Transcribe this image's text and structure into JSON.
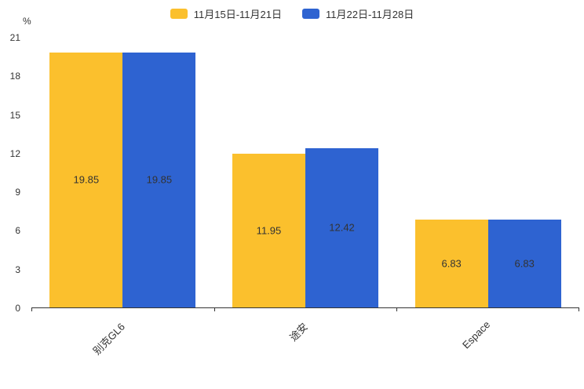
{
  "chart_data": {
    "type": "bar",
    "title": "",
    "ylabel": "%",
    "categories": [
      "别克GL6",
      "途安",
      "Espace"
    ],
    "series": [
      {
        "name": "11月15日-11月21日",
        "color": "#FBC02D",
        "values": [
          19.85,
          11.95,
          6.83
        ]
      },
      {
        "name": "11月22日-11月28日",
        "color": "#2E63D1",
        "values": [
          19.85,
          12.42,
          6.83
        ]
      }
    ],
    "ylim": [
      0,
      21
    ],
    "yticks": [
      0,
      3,
      6,
      9,
      12,
      15,
      18,
      21
    ],
    "grid": false,
    "legend_position": "top",
    "value_labels": "inside"
  },
  "colors": {
    "axis": "#333333",
    "text": "#333333",
    "background": "#ffffff"
  }
}
